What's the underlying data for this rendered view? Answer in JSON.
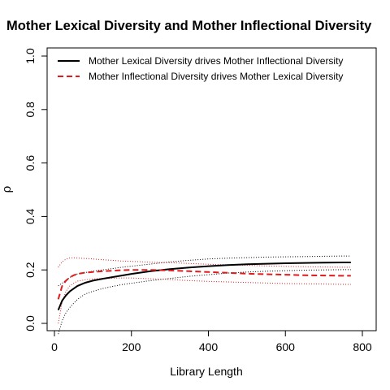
{
  "chart_data": {
    "type": "line",
    "title": "Mother Lexical Diversity and Mother Inflectional Diversity",
    "xlabel": "Library Length",
    "ylabel": "ρ",
    "xlim": [
      0,
      800
    ],
    "ylim": [
      0,
      1.0
    ],
    "x_ticks": [
      "0",
      "200",
      "400",
      "600",
      "800"
    ],
    "y_ticks": [
      "0.0",
      "0.2",
      "0.4",
      "0.6",
      "0.8",
      "1.0"
    ],
    "grid": false,
    "legend_position": "top-left",
    "x": [
      10,
      20,
      30,
      40,
      50,
      60,
      80,
      100,
      125,
      150,
      175,
      200,
      250,
      300,
      350,
      400,
      450,
      500,
      550,
      600,
      650,
      700,
      750,
      770
    ],
    "series": [
      {
        "name": "Mother Lexical Diversity drives Mother Inflectional Diversity",
        "color": "#000000",
        "style": "solid",
        "values": [
          0.05,
          0.085,
          0.105,
          0.12,
          0.13,
          0.14,
          0.152,
          0.16,
          0.167,
          0.173,
          0.179,
          0.185,
          0.195,
          0.203,
          0.209,
          0.214,
          0.218,
          0.221,
          0.223,
          0.225,
          0.226,
          0.227,
          0.228,
          0.228
        ],
        "upper": [
          0.14,
          0.15,
          0.162,
          0.172,
          0.18,
          0.185,
          0.19,
          0.195,
          0.2,
          0.205,
          0.21,
          0.214,
          0.222,
          0.23,
          0.236,
          0.241,
          0.244,
          0.246,
          0.248,
          0.249,
          0.25,
          0.251,
          0.252,
          0.252
        ],
        "lower": [
          -0.04,
          0.01,
          0.04,
          0.06,
          0.075,
          0.09,
          0.11,
          0.12,
          0.13,
          0.138,
          0.145,
          0.15,
          0.16,
          0.168,
          0.176,
          0.182,
          0.188,
          0.192,
          0.195,
          0.197,
          0.199,
          0.2,
          0.201,
          0.201
        ]
      },
      {
        "name": "Mother Inflectional Diversity drives Mother Lexical Diversity",
        "color": "#e31a1c",
        "style": "dashed",
        "values": [
          0.09,
          0.14,
          0.16,
          0.172,
          0.18,
          0.185,
          0.19,
          0.192,
          0.195,
          0.197,
          0.199,
          0.2,
          0.2,
          0.198,
          0.195,
          0.192,
          0.189,
          0.186,
          0.184,
          0.182,
          0.18,
          0.179,
          0.178,
          0.178
        ],
        "upper": [
          0.21,
          0.23,
          0.24,
          0.245,
          0.245,
          0.244,
          0.243,
          0.241,
          0.238,
          0.236,
          0.233,
          0.232,
          0.229,
          0.227,
          0.224,
          0.221,
          0.219,
          0.217,
          0.215,
          0.213,
          0.212,
          0.211,
          0.21,
          0.21
        ],
        "lower": [
          0.0,
          0.08,
          0.12,
          0.14,
          0.15,
          0.158,
          0.163,
          0.166,
          0.168,
          0.169,
          0.17,
          0.17,
          0.167,
          0.164,
          0.16,
          0.157,
          0.155,
          0.153,
          0.151,
          0.149,
          0.148,
          0.147,
          0.146,
          0.146
        ]
      }
    ]
  }
}
